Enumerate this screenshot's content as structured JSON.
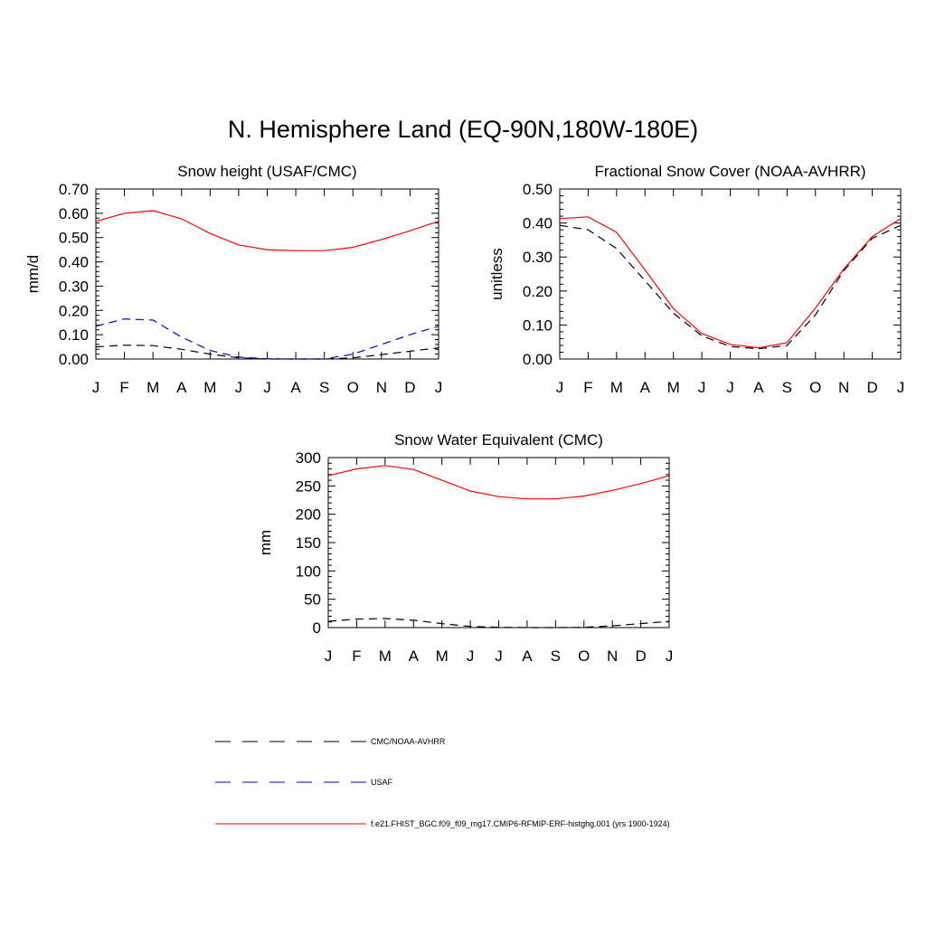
{
  "title": "N. Hemisphere Land (EQ-90N,180W-180E)",
  "month_labels": [
    "J",
    "F",
    "M",
    "A",
    "M",
    "J",
    "J",
    "A",
    "S",
    "O",
    "N",
    "D",
    "J"
  ],
  "colors": {
    "model": "#ff0000",
    "obs_black": "#000000",
    "obs_blue": "#0000cc"
  },
  "legend": [
    {
      "label": "CMC/NOAA-AVHRR",
      "color": "#000000",
      "dashed": true
    },
    {
      "label": "USAF",
      "color": "#0000cc",
      "dashed": true
    },
    {
      "label": "f.e21.FHIST_BGC.f09_f09_mg17.CMIP6-RFMIP-ERF-histghg.001 (yrs 1900-1924)",
      "color": "#ff0000",
      "dashed": false
    }
  ],
  "chart_data": [
    {
      "type": "line",
      "title": "Snow height (USAF/CMC)",
      "ylabel": "mm/d",
      "xlabel": "",
      "ylim": [
        0,
        0.7
      ],
      "yticks": [
        0,
        0.1,
        0.2,
        0.3,
        0.4,
        0.5,
        0.6,
        0.7
      ],
      "ytick_labels": [
        "0.00",
        "0.10",
        "0.20",
        "0.30",
        "0.40",
        "0.50",
        "0.60",
        "0.70"
      ],
      "x": [
        "J",
        "F",
        "M",
        "A",
        "M",
        "J",
        "J",
        "A",
        "S",
        "O",
        "N",
        "D",
        "J"
      ],
      "series": [
        {
          "values": [
            0.567,
            0.6,
            0.611,
            0.577,
            0.517,
            0.47,
            0.45,
            0.446,
            0.446,
            0.46,
            0.492,
            0.528,
            0.567
          ],
          "color": "#ff0000",
          "dashed": false
        },
        {
          "values": [
            0.135,
            0.165,
            0.16,
            0.09,
            0.035,
            0.008,
            0.001,
            0.0,
            0.0,
            0.02,
            0.06,
            0.1,
            0.135
          ],
          "color": "#0000cc",
          "dashed": true
        },
        {
          "values": [
            0.05,
            0.057,
            0.055,
            0.04,
            0.02,
            0.005,
            0.0,
            0.0,
            0.0,
            0.005,
            0.018,
            0.032,
            0.046
          ],
          "color": "#000000",
          "dashed": true
        }
      ]
    },
    {
      "type": "line",
      "title": "Fractional Snow Cover (NOAA-AVHRR)",
      "ylabel": "unitless",
      "xlabel": "",
      "ylim": [
        0,
        0.5
      ],
      "yticks": [
        0,
        0.1,
        0.2,
        0.3,
        0.4,
        0.5
      ],
      "ytick_labels": [
        "0.00",
        "0.10",
        "0.20",
        "0.30",
        "0.40",
        "0.50"
      ],
      "x": [
        "J",
        "F",
        "M",
        "A",
        "M",
        "J",
        "J",
        "A",
        "S",
        "O",
        "N",
        "D",
        "J"
      ],
      "series": [
        {
          "values": [
            0.413,
            0.418,
            0.373,
            0.262,
            0.148,
            0.075,
            0.043,
            0.033,
            0.048,
            0.15,
            0.265,
            0.36,
            0.413
          ],
          "color": "#ff0000",
          "dashed": false
        },
        {
          "values": [
            0.393,
            0.38,
            0.325,
            0.23,
            0.135,
            0.068,
            0.037,
            0.03,
            0.04,
            0.13,
            0.26,
            0.355,
            0.393
          ],
          "color": "#000000",
          "dashed": true
        }
      ]
    },
    {
      "type": "line",
      "title": "Snow Water Equivalent (CMC)",
      "ylabel": "mm",
      "xlabel": "",
      "ylim": [
        0,
        300
      ],
      "yticks": [
        0,
        50,
        100,
        150,
        200,
        250,
        300
      ],
      "ytick_labels": [
        "0",
        "50",
        "100",
        "150",
        "200",
        "250",
        "300"
      ],
      "x": [
        "J",
        "F",
        "M",
        "A",
        "M",
        "J",
        "J",
        "A",
        "S",
        "O",
        "N",
        "D",
        "J"
      ],
      "series": [
        {
          "values": [
            268,
            280,
            286,
            279,
            260,
            241,
            231,
            227,
            227,
            232,
            242,
            254,
            268
          ],
          "color": "#ff0000",
          "dashed": false
        },
        {
          "values": [
            11,
            15,
            16,
            13,
            7,
            2,
            0.5,
            0,
            0,
            0.5,
            3,
            7,
            11
          ],
          "color": "#000000",
          "dashed": true
        }
      ]
    }
  ]
}
